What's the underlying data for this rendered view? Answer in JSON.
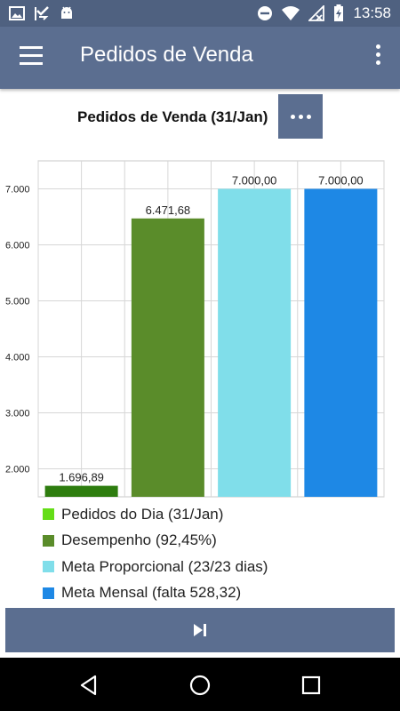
{
  "status_bar": {
    "time": "13:58",
    "icons_left": [
      "image-icon",
      "check-flag-icon",
      "android-icon"
    ],
    "icons_right": [
      "do-not-disturb-icon",
      "wifi-icon",
      "signal-icon",
      "battery-charging-icon"
    ]
  },
  "app_bar": {
    "title": "Pedidos de Venda",
    "menu_icon": "hamburger-menu-icon",
    "overflow_icon": "more-vertical-icon"
  },
  "chart_header": {
    "title": "Pedidos de Venda (31/Jan)",
    "more_icon": "more-horizontal-icon"
  },
  "chart_data": {
    "type": "bar",
    "categories": [
      "Pedidos do Dia (31/Jan)",
      "Desempenho (92,45%)",
      "Meta Proporcional (23/23 dias)",
      "Meta Mensal (falta 528,32)"
    ],
    "values": [
      1696.89,
      6471.68,
      7000.0,
      7000.0
    ],
    "value_labels": [
      "1.696,89",
      "6.471,68",
      "7.000,00",
      "7.000,00"
    ],
    "colors": [
      "#2e7d0f",
      "#5a8c2a",
      "#80deea",
      "#1e88e5"
    ],
    "legend_colors": [
      "#64dd17",
      "#5a8c2a",
      "#80deea",
      "#1e88e5"
    ],
    "ylim": [
      1500,
      7500
    ],
    "yticks": [
      2000,
      3000,
      4000,
      5000,
      6000,
      7000
    ],
    "ytick_labels": [
      "2.000",
      "3.000",
      "4.000",
      "5.000",
      "6.000",
      "7.000"
    ],
    "grid": true,
    "legend_position": "bottom"
  },
  "bottom_button": {
    "icon": "skip-next-icon"
  },
  "nav_bar": {
    "icons": [
      "back-icon",
      "home-icon",
      "recents-icon"
    ]
  }
}
